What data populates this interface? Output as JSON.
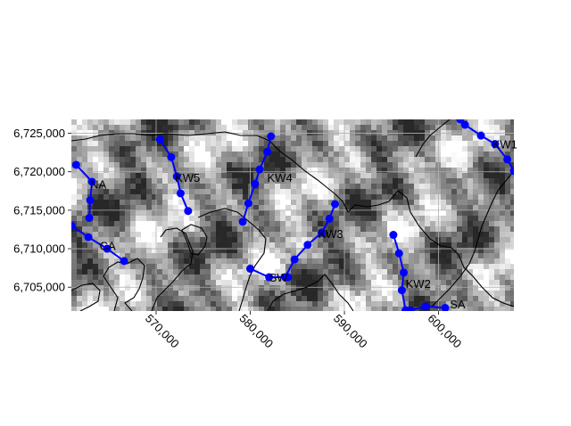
{
  "map": {
    "x_axis": {
      "range": [
        561000,
        608000
      ],
      "ticks": [
        570000,
        580000,
        590000,
        600000
      ],
      "tick_labels": [
        "570,000",
        "580,000",
        "590,000",
        "600,000"
      ],
      "label_rotation": "45 degrees clockwise"
    },
    "y_axis": {
      "range": [
        6701900,
        6726800
      ],
      "ticks": [
        6705000,
        6710000,
        6715000,
        6720000,
        6725000
      ],
      "tick_labels": [
        "6,705,000",
        "6,710,000",
        "6,715,000",
        "6,720,000",
        "6,725,000"
      ]
    },
    "grid": true,
    "basemap": "grayscale hillshade raster",
    "boundary_color": "#000000",
    "transect_color": "#0000ff",
    "transects": [
      {
        "name": "NA",
        "label": "NA",
        "label_at": [
          563000,
          6718400
        ],
        "points": [
          [
            561500,
            6720900
          ],
          [
            563200,
            6718700
          ],
          [
            563000,
            6716300
          ],
          [
            562900,
            6714000
          ]
        ]
      },
      {
        "name": "CA",
        "label": "CA",
        "label_at": [
          564000,
          6710400
        ],
        "points": [
          [
            561000,
            6713000
          ],
          [
            562800,
            6711500
          ],
          [
            564800,
            6710000
          ],
          [
            566600,
            6708400
          ]
        ]
      },
      {
        "name": "KW5",
        "label": "KW5",
        "label_at": [
          572000,
          6719300
        ],
        "points": [
          [
            570400,
            6724200
          ],
          [
            571600,
            6721900
          ],
          [
            572200,
            6719400
          ],
          [
            572600,
            6717200
          ],
          [
            573400,
            6714900
          ]
        ]
      },
      {
        "name": "KW4",
        "label": "KW4",
        "label_at": [
          581800,
          6719300
        ],
        "points": [
          [
            582200,
            6724600
          ],
          [
            581800,
            6722600
          ],
          [
            581000,
            6720300
          ],
          [
            580500,
            6718400
          ],
          [
            579800,
            6715900
          ],
          [
            579200,
            6713500
          ]
        ]
      },
      {
        "name": "SW",
        "label": "SW",
        "label_at": [
          582000,
          6706300
        ],
        "points": [
          [
            580000,
            6707400
          ],
          [
            582000,
            6706300
          ],
          [
            584000,
            6706300
          ]
        ]
      },
      {
        "name": "KW3",
        "label": "KW3",
        "label_at": [
          587200,
          6712000
        ],
        "points": [
          [
            583700,
            6706300
          ],
          [
            584700,
            6708600
          ],
          [
            586100,
            6710500
          ],
          [
            587600,
            6712100
          ],
          [
            588400,
            6713900
          ],
          [
            589000,
            6715800
          ]
        ]
      },
      {
        "name": "KW2",
        "label": "KW2",
        "label_at": [
          596500,
          6705500
        ],
        "points": [
          [
            595200,
            6711800
          ],
          [
            595800,
            6709400
          ],
          [
            596300,
            6706900
          ],
          [
            596100,
            6704600
          ],
          [
            596500,
            6702000
          ]
        ]
      },
      {
        "name": "SA",
        "label": "SA",
        "label_at": [
          601200,
          6702800
        ],
        "points": [
          [
            597000,
            6702000
          ],
          [
            598600,
            6702500
          ],
          [
            600700,
            6702300
          ]
        ]
      },
      {
        "name": "KW1",
        "label": "KW1",
        "label_at": [
          605700,
          6723600
        ],
        "points": [
          [
            602300,
            6726800
          ],
          [
            602800,
            6726100
          ],
          [
            604500,
            6724700
          ],
          [
            606000,
            6723600
          ],
          [
            607300,
            6721600
          ],
          [
            608000,
            6720100
          ]
        ]
      }
    ]
  }
}
